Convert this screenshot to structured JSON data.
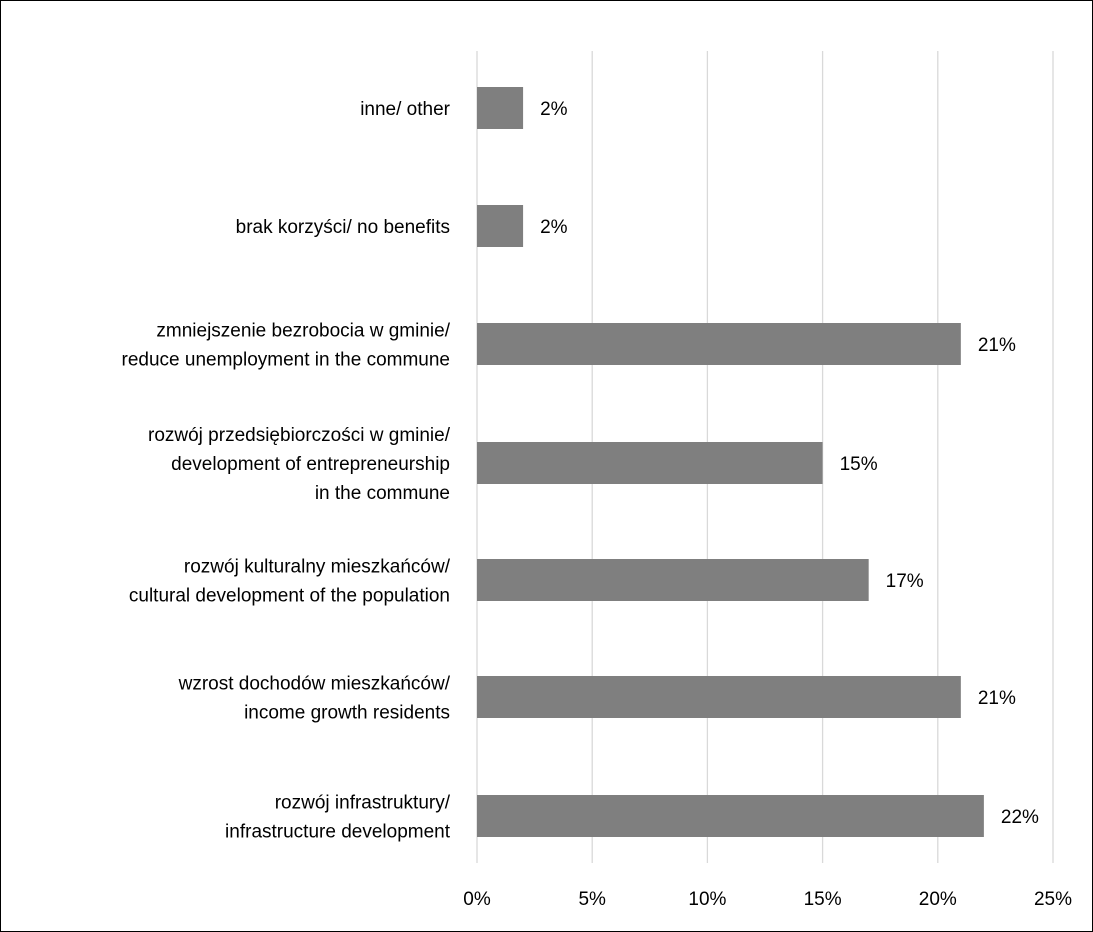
{
  "chart_data": {
    "type": "bar",
    "orientation": "horizontal",
    "categories": [
      [
        "inne/ other"
      ],
      [
        "brak korzyści/ no benefits"
      ],
      [
        "zmniejszenie bezrobocia w gminie/",
        "reduce unemployment in the commune"
      ],
      [
        "rozwój przedsiębiorczości w gminie/",
        "development of entrepreneurship",
        "in the commune"
      ],
      [
        "rozwój kulturalny mieszkańców/",
        "cultural development of the population"
      ],
      [
        "wzrost dochodów mieszkańców/",
        "income growth residents"
      ],
      [
        "rozwój infrastruktury/",
        "infrastructure development"
      ]
    ],
    "values": [
      2,
      2,
      21,
      15,
      17,
      21,
      22
    ],
    "data_labels": [
      "2%",
      "2%",
      "21%",
      "15%",
      "17%",
      "21%",
      "22%"
    ],
    "xlim": [
      0,
      25
    ],
    "x_ticks": [
      0,
      5,
      10,
      15,
      20,
      25
    ],
    "x_tick_labels": [
      "0%",
      "5%",
      "10%",
      "15%",
      "20%",
      "25%"
    ],
    "title": "",
    "xlabel": "",
    "ylabel": "",
    "grid": "vertical",
    "legend": "none",
    "bar_color": "#7f7f7f",
    "grid_color": "#d9d9d9",
    "axis_color": "#d9d9d9"
  }
}
